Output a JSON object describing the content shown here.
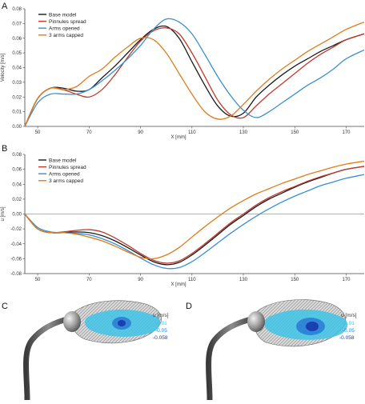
{
  "colors": {
    "base": "#1a1a1a",
    "pinnules": "#c0392b",
    "arms_opened": "#3a8fd1",
    "arms_capped": "#e07b1a",
    "zero_line": "#999999",
    "stem": "#5a5a5a",
    "flow_light": "#3ec4e6",
    "flow_mid": "#2f86d6",
    "flow_dark": "#1b3fb0"
  },
  "chart_data": [
    {
      "panel": "A",
      "type": "line",
      "ylabel": "Velocity [m/s]",
      "xlabel": "X [mm]",
      "xlim": [
        45,
        177
      ],
      "ylim": [
        0,
        0.08
      ],
      "xticks": [
        50,
        70,
        90,
        110,
        130,
        150,
        170
      ],
      "yticks": [
        0,
        0.01,
        0.02,
        0.03,
        0.04,
        0.05,
        0.06,
        0.07,
        0.08
      ],
      "ytick_labels": [
        "0.00",
        "0.01",
        "0.02",
        "0.03",
        "0.04",
        "0.05",
        "0.06",
        "0.07",
        "0.08"
      ],
      "legend": {
        "position": "top-left",
        "entries": [
          "Base model",
          "Pinnules spread",
          "Arms opened",
          "3 arms capped"
        ]
      },
      "series": [
        {
          "name": "Base model",
          "color_key": "base",
          "x": [
            45,
            50,
            55,
            60,
            65,
            70,
            75,
            80,
            85,
            90,
            95,
            100,
            105,
            110,
            115,
            120,
            125,
            130,
            135,
            140,
            145,
            150,
            155,
            160,
            165,
            170,
            177
          ],
          "y": [
            0.0,
            0.019,
            0.026,
            0.026,
            0.024,
            0.025,
            0.033,
            0.041,
            0.05,
            0.059,
            0.066,
            0.068,
            0.06,
            0.044,
            0.028,
            0.014,
            0.007,
            0.009,
            0.02,
            0.028,
            0.035,
            0.041,
            0.046,
            0.051,
            0.055,
            0.059,
            0.063
          ]
        },
        {
          "name": "Pinnules spread",
          "color_key": "pinnules",
          "x": [
            45,
            50,
            55,
            60,
            65,
            70,
            75,
            80,
            85,
            90,
            95,
            100,
            105,
            110,
            115,
            120,
            125,
            130,
            135,
            140,
            145,
            150,
            155,
            160,
            165,
            170,
            177
          ],
          "y": [
            0.0,
            0.019,
            0.026,
            0.025,
            0.022,
            0.02,
            0.025,
            0.035,
            0.047,
            0.058,
            0.065,
            0.067,
            0.063,
            0.05,
            0.034,
            0.018,
            0.008,
            0.006,
            0.014,
            0.022,
            0.029,
            0.036,
            0.043,
            0.049,
            0.054,
            0.059,
            0.063
          ]
        },
        {
          "name": "Arms opened",
          "color_key": "arms_opened",
          "x": [
            45,
            50,
            55,
            60,
            65,
            70,
            75,
            80,
            85,
            90,
            95,
            100,
            105,
            110,
            115,
            120,
            125,
            130,
            135,
            140,
            145,
            150,
            155,
            160,
            165,
            170,
            177
          ],
          "y": [
            0.0,
            0.016,
            0.022,
            0.022,
            0.022,
            0.025,
            0.031,
            0.038,
            0.046,
            0.055,
            0.066,
            0.073,
            0.071,
            0.063,
            0.049,
            0.034,
            0.021,
            0.011,
            0.006,
            0.01,
            0.016,
            0.022,
            0.028,
            0.033,
            0.039,
            0.046,
            0.052
          ]
        },
        {
          "name": "3 arms capped",
          "color_key": "arms_capped",
          "x": [
            45,
            50,
            55,
            60,
            65,
            70,
            75,
            80,
            85,
            90,
            95,
            100,
            105,
            110,
            115,
            120,
            125,
            130,
            135,
            140,
            145,
            150,
            155,
            160,
            165,
            170,
            177
          ],
          "y": [
            0.0,
            0.019,
            0.026,
            0.025,
            0.027,
            0.034,
            0.039,
            0.047,
            0.054,
            0.06,
            0.059,
            0.05,
            0.036,
            0.022,
            0.01,
            0.005,
            0.007,
            0.015,
            0.024,
            0.032,
            0.039,
            0.045,
            0.051,
            0.056,
            0.061,
            0.066,
            0.071
          ]
        }
      ]
    },
    {
      "panel": "B",
      "type": "line",
      "ylabel": "u [m/s]",
      "xlabel": "X [mm]",
      "xlim": [
        45,
        177
      ],
      "ylim": [
        -0.08,
        0.08
      ],
      "xticks": [
        50,
        70,
        90,
        110,
        130,
        150,
        170
      ],
      "yticks": [
        -0.08,
        -0.06,
        -0.04,
        -0.02,
        0,
        0.02,
        0.04,
        0.06,
        0.08
      ],
      "ytick_labels": [
        "-0.08",
        "-0.06",
        "-0.04",
        "-0.02",
        "0.00",
        "0.02",
        "0.04",
        "0.06",
        "0.08"
      ],
      "legend": {
        "position": "top-left",
        "entries": [
          "Base model",
          "Pinnules spread",
          "Arms opened",
          "3 arms capped"
        ]
      },
      "series": [
        {
          "name": "Base model",
          "color_key": "base",
          "x": [
            45,
            50,
            55,
            60,
            65,
            70,
            75,
            80,
            85,
            90,
            95,
            100,
            105,
            110,
            115,
            120,
            125,
            130,
            135,
            140,
            145,
            150,
            155,
            160,
            165,
            170,
            177
          ],
          "y": [
            0.0,
            -0.02,
            -0.025,
            -0.025,
            -0.024,
            -0.025,
            -0.029,
            -0.036,
            -0.045,
            -0.055,
            -0.064,
            -0.068,
            -0.065,
            -0.055,
            -0.042,
            -0.028,
            -0.014,
            -0.002,
            0.01,
            0.02,
            0.028,
            0.036,
            0.043,
            0.049,
            0.055,
            0.06,
            0.064
          ]
        },
        {
          "name": "Pinnules spread",
          "color_key": "pinnules",
          "x": [
            45,
            50,
            55,
            60,
            65,
            70,
            75,
            80,
            85,
            90,
            95,
            100,
            105,
            110,
            115,
            120,
            125,
            130,
            135,
            140,
            145,
            150,
            155,
            160,
            165,
            170,
            177
          ],
          "y": [
            0.0,
            -0.02,
            -0.025,
            -0.024,
            -0.022,
            -0.021,
            -0.024,
            -0.032,
            -0.042,
            -0.053,
            -0.062,
            -0.066,
            -0.063,
            -0.053,
            -0.04,
            -0.026,
            -0.012,
            0.0,
            0.012,
            0.022,
            0.03,
            0.037,
            0.044,
            0.05,
            0.055,
            0.06,
            0.064
          ]
        },
        {
          "name": "Arms opened",
          "color_key": "arms_opened",
          "x": [
            45,
            50,
            55,
            60,
            65,
            70,
            75,
            80,
            85,
            90,
            95,
            100,
            105,
            110,
            115,
            120,
            125,
            130,
            135,
            140,
            145,
            150,
            155,
            160,
            165,
            170,
            177
          ],
          "y": [
            0.0,
            -0.018,
            -0.024,
            -0.025,
            -0.026,
            -0.028,
            -0.033,
            -0.04,
            -0.049,
            -0.059,
            -0.068,
            -0.073,
            -0.072,
            -0.064,
            -0.052,
            -0.039,
            -0.026,
            -0.014,
            -0.003,
            0.007,
            0.016,
            0.024,
            0.031,
            0.038,
            0.043,
            0.048,
            0.053
          ]
        },
        {
          "name": "3 arms capped",
          "color_key": "arms_capped",
          "x": [
            45,
            50,
            55,
            60,
            65,
            70,
            75,
            80,
            85,
            90,
            95,
            100,
            105,
            110,
            115,
            120,
            125,
            130,
            135,
            140,
            145,
            150,
            155,
            160,
            165,
            170,
            177
          ],
          "y": [
            0.0,
            -0.02,
            -0.025,
            -0.025,
            -0.027,
            -0.031,
            -0.036,
            -0.043,
            -0.051,
            -0.058,
            -0.06,
            -0.055,
            -0.045,
            -0.031,
            -0.017,
            -0.004,
            0.008,
            0.018,
            0.027,
            0.034,
            0.041,
            0.047,
            0.053,
            0.058,
            0.063,
            0.067,
            0.071
          ]
        }
      ]
    }
  ],
  "panels": {
    "A": "A",
    "B": "B",
    "C": "C",
    "D": "D"
  },
  "colorbar_C": {
    "title": "u [m/s]",
    "levels": [
      "-0.01",
      "-0.05",
      "-0.058"
    ]
  },
  "colorbar_D": {
    "title": "u [m/s]",
    "levels": [
      "-0.01",
      "-0.05",
      "-0.058"
    ]
  }
}
